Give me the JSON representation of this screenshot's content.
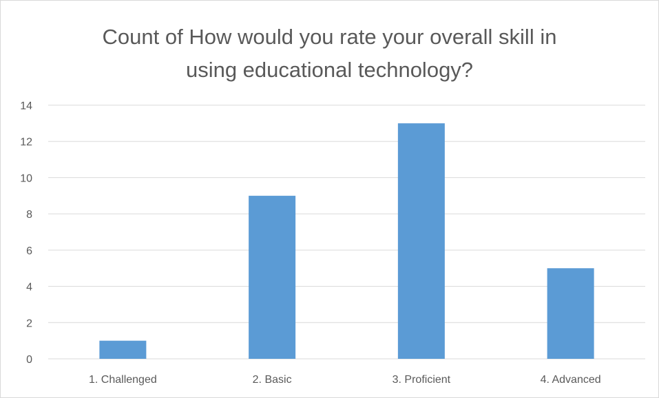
{
  "chart_data": {
    "type": "bar",
    "title_lines": [
      "Count of How would you rate your overall skill in",
      "using educational technology?"
    ],
    "categories": [
      "1. Challenged",
      "2. Basic",
      "3. Proficient",
      "4. Advanced"
    ],
    "values": [
      1,
      9,
      13,
      5
    ],
    "ylim": [
      0,
      14
    ],
    "yticks": [
      0,
      2,
      4,
      6,
      8,
      10,
      12,
      14
    ],
    "grid": true,
    "bar_color": "#5b9bd5",
    "gridline_color": "#d9d9d9"
  }
}
